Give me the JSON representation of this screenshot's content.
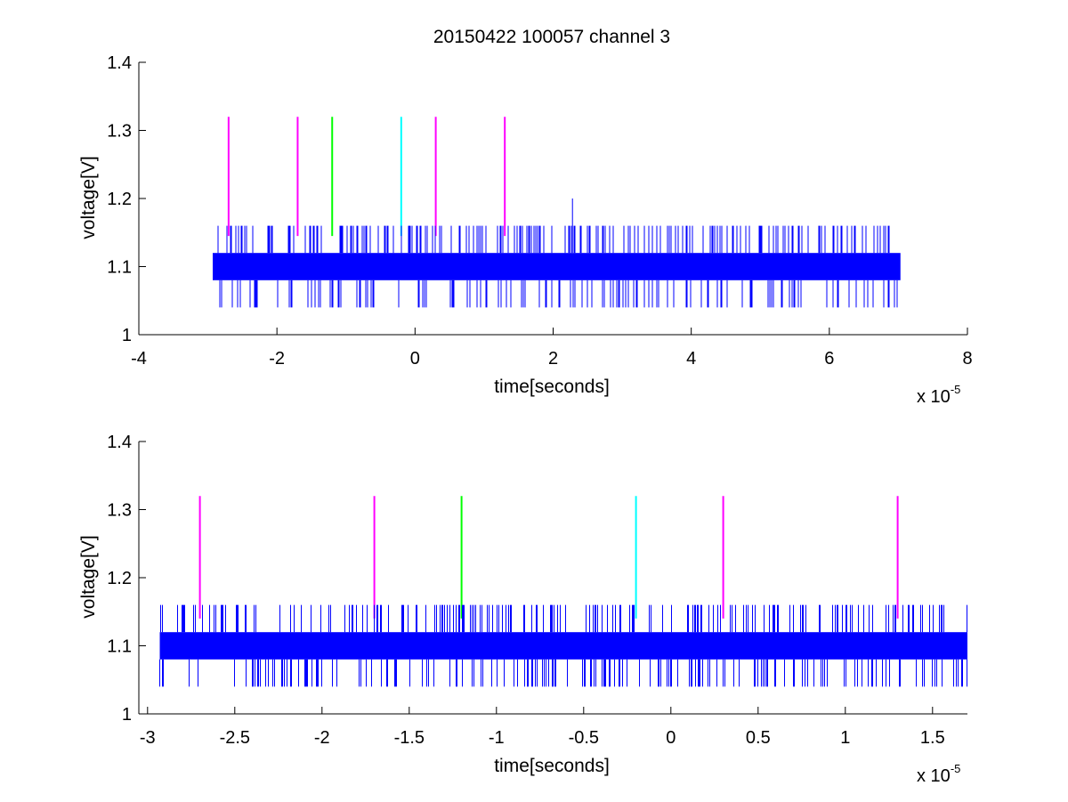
{
  "figure": {
    "title": "20150422 100057 channel 3"
  },
  "chart_data": [
    {
      "type": "line",
      "title": "20150422 100057 channel 3",
      "xlabel": "time[seconds]",
      "ylabel": "voltage[V]",
      "x_multiplier_label": "x 10",
      "x_multiplier_exponent": "-5",
      "xlim": [
        -4,
        8
      ],
      "ylim": [
        1,
        1.4
      ],
      "xticks": [
        -4,
        -2,
        0,
        2,
        4,
        6,
        8
      ],
      "xtick_labels": [
        "-4",
        "-2",
        "0",
        "2",
        "4",
        "6",
        "8"
      ],
      "yticks": [
        1,
        1.1,
        1.2,
        1.3,
        1.4
      ],
      "ytick_labels": [
        "1",
        "1.1",
        "1.2",
        "1.3",
        "1.4"
      ],
      "grid": false,
      "signal": {
        "color": "#0000ff",
        "x_range": [
          -2.93,
          7.03
        ],
        "baseline_band": [
          1.08,
          1.12
        ],
        "spike_high": 1.16,
        "spike_low": 1.04,
        "outlier": {
          "x": 2.28,
          "y": 1.2
        }
      },
      "markers": [
        {
          "x": -2.7,
          "y_from": 1.145,
          "y_to": 1.32,
          "color": "#ff00ff"
        },
        {
          "x": -1.7,
          "y_from": 1.145,
          "y_to": 1.32,
          "color": "#ff00ff"
        },
        {
          "x": -1.2,
          "y_from": 1.145,
          "y_to": 1.32,
          "color": "#00ff00"
        },
        {
          "x": -0.2,
          "y_from": 1.145,
          "y_to": 1.32,
          "color": "#00ffff"
        },
        {
          "x": 0.3,
          "y_from": 1.145,
          "y_to": 1.32,
          "color": "#ff00ff"
        },
        {
          "x": 1.3,
          "y_from": 1.145,
          "y_to": 1.32,
          "color": "#ff00ff"
        }
      ]
    },
    {
      "type": "line",
      "title": "",
      "xlabel": "time[seconds]",
      "ylabel": "voltage[V]",
      "x_multiplier_label": "x 10",
      "x_multiplier_exponent": "-5",
      "xlim": [
        -3.05,
        1.7
      ],
      "ylim": [
        1,
        1.4
      ],
      "xticks": [
        -3,
        -2.5,
        -2,
        -1.5,
        -1,
        -0.5,
        0,
        0.5,
        1,
        1.5
      ],
      "xtick_labels": [
        "-3",
        "-2.5",
        "-2",
        "-1.5",
        "-1",
        "-0.5",
        "0",
        "0.5",
        "1",
        "1.5"
      ],
      "yticks": [
        1,
        1.1,
        1.2,
        1.3,
        1.4
      ],
      "ytick_labels": [
        "1",
        "1.1",
        "1.2",
        "1.3",
        "1.4"
      ],
      "grid": false,
      "signal": {
        "color": "#0000ff",
        "x_range": [
          -2.93,
          1.7
        ],
        "baseline_band": [
          1.08,
          1.12
        ],
        "spike_high": 1.16,
        "spike_low": 1.04
      },
      "markers": [
        {
          "x": -2.7,
          "y_from": 1.14,
          "y_to": 1.32,
          "color": "#ff00ff"
        },
        {
          "x": -1.7,
          "y_from": 1.14,
          "y_to": 1.32,
          "color": "#ff00ff"
        },
        {
          "x": -1.2,
          "y_from": 1.14,
          "y_to": 1.32,
          "color": "#00ff00"
        },
        {
          "x": -0.2,
          "y_from": 1.14,
          "y_to": 1.32,
          "color": "#00ffff"
        },
        {
          "x": 0.3,
          "y_from": 1.14,
          "y_to": 1.32,
          "color": "#ff00ff"
        },
        {
          "x": 1.3,
          "y_from": 1.14,
          "y_to": 1.32,
          "color": "#ff00ff"
        }
      ]
    }
  ]
}
